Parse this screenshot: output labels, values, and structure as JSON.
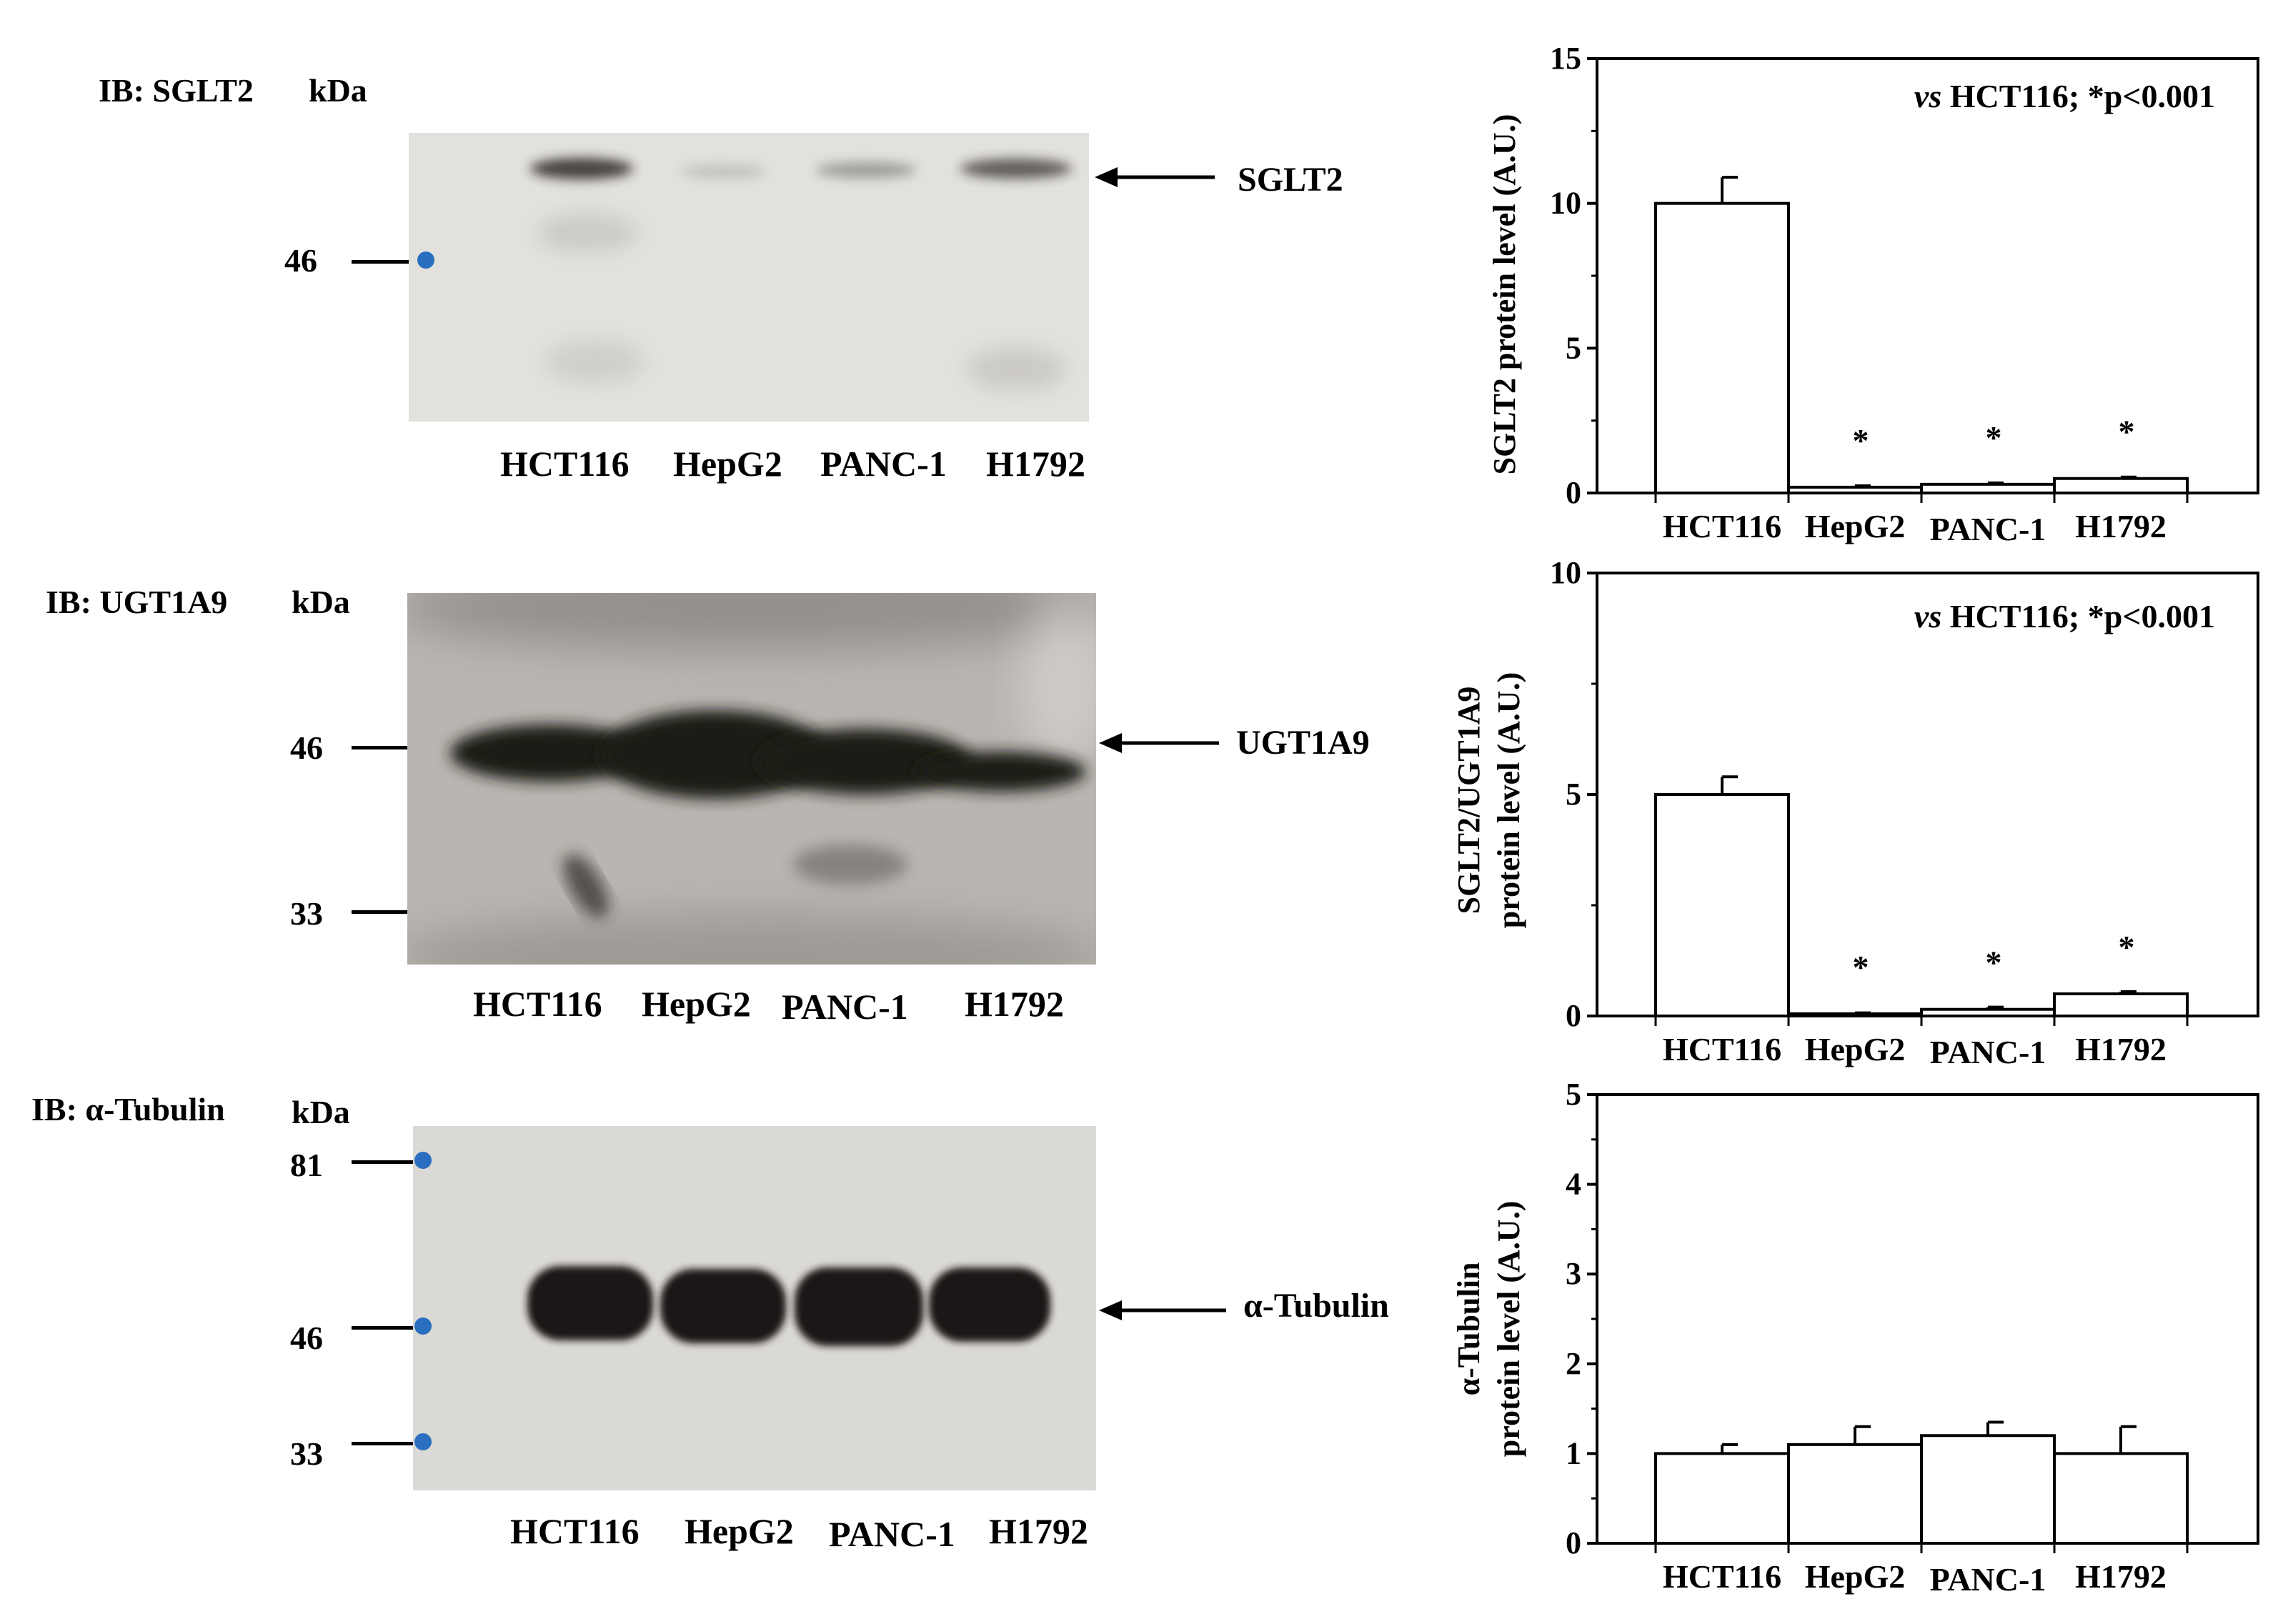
{
  "blots": [
    {
      "ib_title": "IB: SGLT2",
      "kda_label": "kDa",
      "markers": [
        "46"
      ],
      "band_label": "SGLT2",
      "lanes": [
        "HCT116",
        "HepG2",
        "PANC-1",
        "H1792"
      ]
    },
    {
      "ib_title": "IB: UGT1A9",
      "kda_label": "kDa",
      "markers": [
        "46",
        "33"
      ],
      "band_label": "UGT1A9",
      "lanes": [
        "HCT116",
        "HepG2",
        "PANC-1",
        "H1792"
      ]
    },
    {
      "ib_title": "IB: α-Tubulin",
      "kda_label": "kDa",
      "markers": [
        "81",
        "46",
        "33"
      ],
      "band_label": "α-Tubulin",
      "lanes": [
        "HCT116",
        "HepG2",
        "PANC-1",
        "H1792"
      ]
    }
  ],
  "chart_data": [
    {
      "type": "bar",
      "categories": [
        "HCT116",
        "HepG2",
        "PANC-1",
        "H1792"
      ],
      "values": [
        10,
        0.2,
        0.3,
        0.5
      ],
      "errors": [
        0.9,
        0.05,
        0.05,
        0.05
      ],
      "significance": [
        "",
        "*",
        "*",
        "*"
      ],
      "ylabel_lines": [
        "SGLT2 protein level (A.U.)"
      ],
      "annotation_italic": "vs",
      "annotation": " HCT116; *p<0.001",
      "ylim": [
        0,
        15
      ],
      "yticks": [
        "0",
        "5",
        "10",
        "15"
      ]
    },
    {
      "type": "bar",
      "categories": [
        "HCT116",
        "HepG2",
        "PANC-1",
        "H1792"
      ],
      "values": [
        5,
        0.05,
        0.15,
        0.5
      ],
      "errors": [
        0.4,
        0.02,
        0.05,
        0.05
      ],
      "significance": [
        "",
        "*",
        "*",
        "*"
      ],
      "ylabel_lines": [
        "SGLT2/UGT1A9",
        "protein level (A.U.)"
      ],
      "annotation_italic": "vs",
      "annotation": " HCT116; *p<0.001",
      "ylim": [
        0,
        10
      ],
      "yticks": [
        "0",
        "5",
        "10"
      ]
    },
    {
      "type": "bar",
      "categories": [
        "HCT116",
        "HepG2",
        "PANC-1",
        "H1792"
      ],
      "values": [
        1.0,
        1.1,
        1.2,
        1.0
      ],
      "errors": [
        0.1,
        0.2,
        0.15,
        0.3
      ],
      "significance": [
        "",
        "",
        "",
        ""
      ],
      "ylabel_lines": [
        "α-Tubulin",
        "protein level (A.U.)"
      ],
      "annotation_italic": "",
      "annotation": "",
      "ylim": [
        0,
        5
      ],
      "yticks": [
        "0",
        "1",
        "2",
        "3",
        "4",
        "5"
      ]
    }
  ]
}
